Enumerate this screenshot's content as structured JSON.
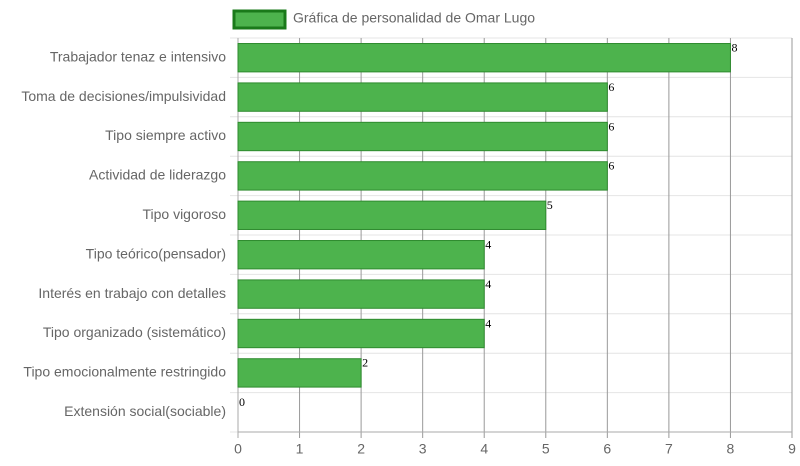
{
  "chart_data": {
    "type": "bar",
    "orientation": "horizontal",
    "legend_label": "Gráfica de personalidad de Omar Lugo",
    "categories": [
      "Trabajador tenaz e intensivo",
      "Toma de decisiones/impulsividad",
      "Tipo siempre activo",
      "Actividad de liderazgo",
      "Tipo vigoroso",
      "Tipo teórico(pensador)",
      "Interés en trabajo con detalles",
      "Tipo organizado (sistemático)",
      "Tipo emocionalmente restringido",
      "Extensión social(sociable)"
    ],
    "values": [
      8,
      6,
      6,
      6,
      5,
      4,
      4,
      4,
      2,
      0
    ],
    "color": "#4db34d",
    "border_color": "#2e8b2e",
    "xlim": [
      0,
      9
    ],
    "xticks": [
      0,
      1,
      2,
      3,
      4,
      5,
      6,
      7,
      8,
      9
    ],
    "grid": true
  }
}
